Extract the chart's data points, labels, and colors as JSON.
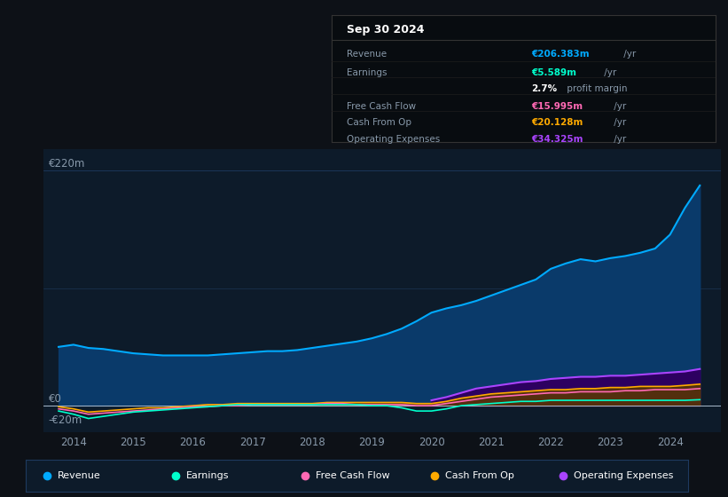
{
  "background_color": "#0d1117",
  "plot_bg_color": "#0d1b2a",
  "grid_color": "#1e3a5f",
  "text_color": "#ffffff",
  "dim_text_color": "#8899aa",
  "y_label_220": "€220m",
  "y_label_0": "€0",
  "y_label_neg20": "-€20m",
  "ylim": [
    -25,
    240
  ],
  "years": [
    2013.75,
    2014,
    2014.25,
    2014.5,
    2014.75,
    2015,
    2015.25,
    2015.5,
    2015.75,
    2016,
    2016.25,
    2016.5,
    2016.75,
    2017,
    2017.25,
    2017.5,
    2017.75,
    2018,
    2018.25,
    2018.5,
    2018.75,
    2019,
    2019.25,
    2019.5,
    2019.75,
    2020,
    2020.25,
    2020.5,
    2020.75,
    2021,
    2021.25,
    2021.5,
    2021.75,
    2022,
    2022.25,
    2022.5,
    2022.75,
    2023,
    2023.25,
    2023.5,
    2023.75,
    2024,
    2024.25,
    2024.5
  ],
  "revenue": [
    55,
    57,
    54,
    53,
    51,
    49,
    48,
    47,
    47,
    47,
    47,
    48,
    49,
    50,
    51,
    51,
    52,
    54,
    56,
    58,
    60,
    63,
    67,
    72,
    79,
    87,
    91,
    94,
    98,
    103,
    108,
    113,
    118,
    128,
    133,
    137,
    135,
    138,
    140,
    143,
    147,
    160,
    185,
    206
  ],
  "earnings": [
    -5,
    -8,
    -12,
    -10,
    -8,
    -6,
    -5,
    -4,
    -3,
    -2,
    -1,
    0,
    1,
    1,
    1,
    1,
    1,
    1,
    1,
    1,
    1,
    0,
    0,
    -2,
    -5,
    -5,
    -3,
    0,
    1,
    2,
    3,
    4,
    4,
    5,
    5,
    5,
    5,
    5,
    5,
    5,
    5,
    5,
    5,
    5.589
  ],
  "free_cash_flow": [
    -3,
    -5,
    -8,
    -7,
    -6,
    -5,
    -4,
    -3,
    -2,
    -1,
    -1,
    0,
    0,
    1,
    1,
    1,
    1,
    1,
    2,
    2,
    1,
    1,
    1,
    1,
    0,
    0,
    2,
    4,
    6,
    8,
    9,
    10,
    11,
    12,
    12,
    13,
    13,
    13,
    14,
    14,
    15,
    15,
    15,
    15.995
  ],
  "cash_from_op": [
    -1,
    -3,
    -6,
    -5,
    -4,
    -3,
    -2,
    -2,
    -1,
    0,
    1,
    1,
    2,
    2,
    2,
    2,
    2,
    2,
    3,
    3,
    3,
    3,
    3,
    3,
    2,
    2,
    4,
    7,
    9,
    11,
    12,
    13,
    14,
    15,
    15,
    16,
    16,
    17,
    17,
    18,
    18,
    18,
    19,
    20.128
  ],
  "operating_expenses": [
    0,
    0,
    0,
    0,
    0,
    0,
    0,
    0,
    0,
    0,
    0,
    0,
    0,
    0,
    0,
    0,
    0,
    0,
    0,
    0,
    0,
    0,
    0,
    0,
    0,
    5,
    8,
    12,
    16,
    18,
    20,
    22,
    23,
    25,
    26,
    27,
    27,
    28,
    28,
    29,
    30,
    31,
    32,
    34.325
  ],
  "revenue_color": "#00aaff",
  "revenue_fill": "#0a3a6a",
  "earnings_color": "#00ffcc",
  "free_cash_flow_color": "#ff69b4",
  "cash_from_op_color": "#ffaa00",
  "operating_expenses_color": "#aa44ff",
  "operating_expenses_fill": "#2d0060",
  "cash_from_op_fill": "#5a3800",
  "tooltip_bg": "#080c10",
  "tooltip_border": "#333333",
  "legend_bg": "#0d1b2a",
  "legend_border": "#1e3a5f",
  "xticks": [
    2014,
    2015,
    2016,
    2017,
    2018,
    2019,
    2020,
    2021,
    2022,
    2023,
    2024
  ],
  "xlim": [
    2013.5,
    2024.85
  ],
  "tooltip": {
    "date": "Sep 30 2024",
    "revenue_label": "Revenue",
    "revenue_value": "€206.383m",
    "earnings_label": "Earnings",
    "earnings_value": "€5.589m",
    "profit_margin": "2.7%",
    "profit_margin_rest": " profit margin",
    "fcf_label": "Free Cash Flow",
    "fcf_value": "€15.995m",
    "cfop_label": "Cash From Op",
    "cfop_value": "€20.128m",
    "opex_label": "Operating Expenses",
    "opex_value": "€34.325m"
  },
  "legend": [
    {
      "label": "Revenue",
      "color": "#00aaff"
    },
    {
      "label": "Earnings",
      "color": "#00ffcc"
    },
    {
      "label": "Free Cash Flow",
      "color": "#ff69b4"
    },
    {
      "label": "Cash From Op",
      "color": "#ffaa00"
    },
    {
      "label": "Operating Expenses",
      "color": "#aa44ff"
    }
  ]
}
